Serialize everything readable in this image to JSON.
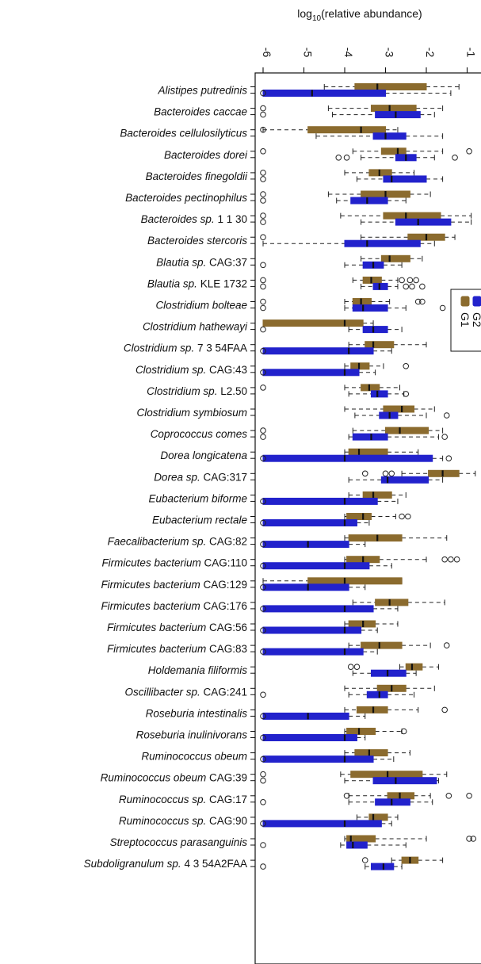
{
  "chart_data": {
    "type": "box",
    "orientation": "horizontal",
    "xlabel_prefix": "log",
    "xlabel_sub": "10",
    "xlabel_suffix": "(relative abundance)",
    "x_axis_position": "top",
    "x_ticks": [
      -6,
      -5,
      -4,
      -3,
      -2,
      -1
    ],
    "x_tick_labels": [
      "-6",
      "-5",
      "-4",
      "-3",
      "-2",
      "-1"
    ],
    "xlim": [
      -6.2,
      -0.8
    ],
    "legend": {
      "placement": "right",
      "entries": [
        {
          "name": "G1",
          "color": "#8B6B2E"
        },
        {
          "name": "G2",
          "color": "#2222CC"
        }
      ]
    },
    "series": [
      {
        "name": "G1",
        "color": "#8B6B2E"
      },
      {
        "name": "G2",
        "color": "#2222CC"
      }
    ],
    "categories": [
      {
        "label": "Alistipes putredinis",
        "genus": "Alistipes putredinis",
        "rest": "",
        "G1": {
          "lw": -4.5,
          "q1": -3.75,
          "med": -3.2,
          "q3": -2.0,
          "uw": -1.2,
          "out": []
        },
        "G2": {
          "lw": -6.0,
          "q1": -6.0,
          "med": -4.8,
          "q3": -3.0,
          "uw": -1.4,
          "out": [
            -6.0
          ]
        }
      },
      {
        "label": "Bacteroides caccae",
        "genus": "Bacteroides caccae",
        "rest": "",
        "G1": {
          "lw": -4.4,
          "q1": -3.35,
          "med": -2.9,
          "q3": -2.25,
          "uw": -1.6,
          "out": [
            -6.0
          ]
        },
        "G2": {
          "lw": -4.3,
          "q1": -3.25,
          "med": -2.75,
          "q3": -2.15,
          "uw": -1.8,
          "out": [
            -6.0
          ]
        }
      },
      {
        "label": "Bacteroides cellulosilyticus",
        "genus": "Bacteroides cellulosilyticus",
        "rest": "",
        "G1": {
          "lw": -6.0,
          "q1": -4.9,
          "med": -3.6,
          "q3": -3.0,
          "uw": -2.7,
          "out": [
            -6.0
          ]
        },
        "G2": {
          "lw": -4.7,
          "q1": -3.3,
          "med": -3.0,
          "q3": -2.5,
          "uw": -1.6,
          "out": []
        }
      },
      {
        "label": "Bacteroides dorei",
        "genus": "Bacteroides dorei",
        "rest": "",
        "G1": {
          "lw": -3.8,
          "q1": -3.1,
          "med": -2.7,
          "q3": -2.5,
          "uw": -1.6,
          "out": [
            -6.0,
            -0.95
          ]
        },
        "G2": {
          "lw": -3.6,
          "q1": -2.75,
          "med": -2.5,
          "q3": -2.25,
          "uw": -1.8,
          "out": [
            -4.15,
            -3.95,
            -1.3
          ]
        }
      },
      {
        "label": "Bacteroides finegoldii",
        "genus": "Bacteroides finegoldii",
        "rest": "",
        "G1": {
          "lw": -4.0,
          "q1": -3.4,
          "med": -3.15,
          "q3": -2.85,
          "uw": -2.3,
          "out": [
            -6.0
          ]
        },
        "G2": {
          "lw": -3.7,
          "q1": -3.05,
          "med": -2.85,
          "q3": -2.0,
          "uw": -1.6,
          "out": [
            -6.0
          ]
        }
      },
      {
        "label": "Bacteroides pectinophilus",
        "genus": "Bacteroides pectinophilus",
        "rest": "",
        "G1": {
          "lw": -4.4,
          "q1": -3.6,
          "med": -3.0,
          "q3": -2.4,
          "uw": -1.9,
          "out": [
            -6.0
          ]
        },
        "G2": {
          "lw": -4.2,
          "q1": -3.85,
          "med": -3.45,
          "q3": -2.95,
          "uw": -2.5,
          "out": [
            -6.0
          ]
        }
      },
      {
        "label": "Bacteroides sp. 1 1 30",
        "genus": "Bacteroides sp.",
        "rest": " 1 1 30",
        "G1": {
          "lw": -4.1,
          "q1": -3.05,
          "med": -2.5,
          "q3": -1.65,
          "uw": -0.9,
          "out": [
            -6.0
          ]
        },
        "G2": {
          "lw": -3.6,
          "q1": -2.75,
          "med": -2.2,
          "q3": -1.4,
          "uw": -0.9,
          "out": [
            -6.0
          ]
        }
      },
      {
        "label": "Bacteroides stercoris",
        "genus": "Bacteroides stercoris",
        "rest": "",
        "G1": {
          "lw": -3.6,
          "q1": -2.45,
          "med": -2.0,
          "q3": -1.55,
          "uw": -1.3,
          "out": [
            -6.0
          ]
        },
        "G2": {
          "lw": -6.0,
          "q1": -4.0,
          "med": -3.45,
          "q3": -2.15,
          "uw": -1.8,
          "out": []
        }
      },
      {
        "label": "Blautia sp. CAG:37",
        "genus": "Blautia sp.",
        "rest": " CAG:37",
        "G1": {
          "lw": -3.6,
          "q1": -3.1,
          "med": -2.9,
          "q3": -2.4,
          "uw": -2.1,
          "out": []
        },
        "G2": {
          "lw": -4.0,
          "q1": -3.55,
          "med": -3.3,
          "q3": -3.05,
          "uw": -2.6,
          "out": [
            -6.0
          ]
        }
      },
      {
        "label": "Blautia sp. KLE 1732",
        "genus": "Blautia sp.",
        "rest": " KLE 1732",
        "G1": {
          "lw": -3.8,
          "q1": -3.55,
          "med": -3.35,
          "q3": -3.1,
          "uw": -2.7,
          "out": [
            -6.0,
            -2.6,
            -2.4,
            -2.25
          ]
        },
        "G2": {
          "lw": -3.6,
          "q1": -3.3,
          "med": -3.15,
          "q3": -2.95,
          "uw": -2.7,
          "out": [
            -6.0,
            -2.5,
            -2.35,
            -2.1
          ]
        }
      },
      {
        "label": "Clostridium bolteae",
        "genus": "Clostridium bolteae",
        "rest": "",
        "G1": {
          "lw": -4.0,
          "q1": -3.8,
          "med": -3.6,
          "q3": -3.35,
          "uw": -2.9,
          "out": [
            -6.0,
            -2.2,
            -2.1
          ]
        },
        "G2": {
          "lw": -4.0,
          "q1": -3.8,
          "med": -3.55,
          "q3": -2.95,
          "uw": -2.5,
          "out": [
            -6.0,
            -1.6
          ]
        }
      },
      {
        "label": "Clostridium hathewayi",
        "genus": "Clostridium hathewayi",
        "rest": "",
        "G1": {
          "lw": -6.0,
          "q1": -6.0,
          "med": -4.0,
          "q3": -3.55,
          "uw": -3.3,
          "out": []
        },
        "G2": {
          "lw": -3.9,
          "q1": -3.55,
          "med": -3.3,
          "q3": -2.95,
          "uw": -2.6,
          "out": [
            -6.0
          ]
        }
      },
      {
        "label": "Clostridium sp. 7 3 54FAA",
        "genus": "Clostridium sp.",
        "rest": " 7 3 54FAA",
        "G1": {
          "lw": -3.9,
          "q1": -3.5,
          "med": -3.3,
          "q3": -2.8,
          "uw": -2.0,
          "out": []
        },
        "G2": {
          "lw": -6.0,
          "q1": -6.0,
          "med": -3.9,
          "q3": -3.3,
          "uw": -2.85,
          "out": [
            -6.0
          ]
        }
      },
      {
        "label": "Clostridium sp. CAG:43",
        "genus": "Clostridium sp.",
        "rest": " CAG:43",
        "G1": {
          "lw": -4.0,
          "q1": -3.85,
          "med": -3.65,
          "q3": -3.4,
          "uw": -3.05,
          "out": [
            -2.5
          ]
        },
        "G2": {
          "lw": -6.0,
          "q1": -6.0,
          "med": -4.0,
          "q3": -3.65,
          "uw": -3.25,
          "out": [
            -6.0
          ]
        }
      },
      {
        "label": "Clostridium sp. L2.50",
        "genus": "Clostridium sp.",
        "rest": " L2.50",
        "G1": {
          "lw": -4.0,
          "q1": -3.6,
          "med": -3.4,
          "q3": -3.15,
          "uw": -2.65,
          "out": [
            -6.0
          ]
        },
        "G2": {
          "lw": -3.9,
          "q1": -3.35,
          "med": -3.2,
          "q3": -2.95,
          "uw": -2.55,
          "out": [
            -2.5
          ]
        }
      },
      {
        "label": "Clostridium symbiosum",
        "genus": "Clostridium symbiosum",
        "rest": "",
        "G1": {
          "lw": -4.0,
          "q1": -3.05,
          "med": -2.6,
          "q3": -2.3,
          "uw": -1.8,
          "out": []
        },
        "G2": {
          "lw": -3.75,
          "q1": -3.15,
          "med": -2.9,
          "q3": -2.7,
          "uw": -2.0,
          "out": [
            -1.5
          ]
        }
      },
      {
        "label": "Coprococcus comes",
        "genus": "Coprococcus comes",
        "rest": "",
        "G1": {
          "lw": -3.8,
          "q1": -3.0,
          "med": -2.65,
          "q3": -1.95,
          "uw": -1.6,
          "out": [
            -6.0
          ]
        },
        "G2": {
          "lw": -3.9,
          "q1": -3.8,
          "med": -3.35,
          "q3": -2.95,
          "uw": -1.7,
          "out": [
            -6.0,
            -1.55
          ]
        }
      },
      {
        "label": "Dorea longicatena",
        "genus": "Dorea longicatena",
        "rest": "",
        "G1": {
          "lw": -4.0,
          "q1": -3.9,
          "med": -3.65,
          "q3": -2.95,
          "uw": -2.2,
          "out": []
        },
        "G2": {
          "lw": -6.0,
          "q1": -6.0,
          "med": -4.0,
          "q3": -1.85,
          "uw": -1.6,
          "out": [
            -6.0,
            -1.45
          ]
        }
      },
      {
        "label": "Dorea sp. CAG:317",
        "genus": "Dorea sp.",
        "rest": " CAG:317",
        "G1": {
          "lw": -2.6,
          "q1": -1.95,
          "med": -1.6,
          "q3": -1.2,
          "uw": -0.8,
          "out": [
            -3.5,
            -3.0,
            -2.85
          ]
        },
        "G2": {
          "lw": -3.9,
          "q1": -3.1,
          "med": -2.95,
          "q3": -1.95,
          "uw": -1.6,
          "out": []
        }
      },
      {
        "label": "Eubacterium biforme",
        "genus": "Eubacterium biforme",
        "rest": "",
        "G1": {
          "lw": -3.9,
          "q1": -3.55,
          "med": -3.3,
          "q3": -2.85,
          "uw": -2.5,
          "out": []
        },
        "G2": {
          "lw": -6.0,
          "q1": -6.0,
          "med": -4.0,
          "q3": -3.2,
          "uw": -2.7,
          "out": [
            -6.0
          ]
        }
      },
      {
        "label": "Eubacterium rectale",
        "genus": "Eubacterium rectale",
        "rest": "",
        "G1": {
          "lw": -4.0,
          "q1": -3.95,
          "med": -3.55,
          "q3": -3.35,
          "uw": -2.75,
          "out": [
            -2.6,
            -2.45
          ]
        },
        "G2": {
          "lw": -6.0,
          "q1": -6.0,
          "med": -4.0,
          "q3": -3.7,
          "uw": -3.4,
          "out": [
            -6.0
          ]
        }
      },
      {
        "label": "Faecalibacterium sp. CAG:82",
        "genus": "Faecalibacterium sp.",
        "rest": " CAG:82",
        "G1": {
          "lw": -4.0,
          "q1": -3.9,
          "med": -3.2,
          "q3": -2.6,
          "uw": -1.5,
          "out": []
        },
        "G2": {
          "lw": -6.0,
          "q1": -6.0,
          "med": -4.9,
          "q3": -3.9,
          "uw": -3.5,
          "out": [
            -6.0
          ]
        }
      },
      {
        "label": "Firmicutes bacterium CAG:110",
        "genus": "Firmicutes bacterium",
        "rest": " CAG:110",
        "G1": {
          "lw": -4.0,
          "q1": -3.95,
          "med": -3.55,
          "q3": -3.15,
          "uw": -2.0,
          "out": [
            -1.55,
            -1.4,
            -1.25
          ]
        },
        "G2": {
          "lw": -6.0,
          "q1": -6.0,
          "med": -4.0,
          "q3": -3.4,
          "uw": -2.85,
          "out": [
            -6.0
          ]
        }
      },
      {
        "label": "Firmicutes bacterium CAG:129",
        "genus": "Firmicutes bacterium",
        "rest": " CAG:129",
        "G1": {
          "lw": -6.0,
          "q1": -4.9,
          "med": -4.0,
          "q3": -2.6,
          "uw": -2.6,
          "out": []
        },
        "G2": {
          "lw": -6.0,
          "q1": -6.0,
          "med": -4.9,
          "q3": -3.9,
          "uw": -3.5,
          "out": [
            -6.0
          ]
        }
      },
      {
        "label": "Firmicutes bacterium CAG:176",
        "genus": "Firmicutes bacterium",
        "rest": " CAG:176",
        "G1": {
          "lw": -3.8,
          "q1": -3.25,
          "med": -2.9,
          "q3": -2.45,
          "uw": -1.55,
          "out": []
        },
        "G2": {
          "lw": -6.0,
          "q1": -6.0,
          "med": -4.0,
          "q3": -3.3,
          "uw": -2.7,
          "out": [
            -6.0
          ]
        }
      },
      {
        "label": "Firmicutes bacterium CAG:56",
        "genus": "Firmicutes bacterium",
        "rest": " CAG:56",
        "G1": {
          "lw": -4.0,
          "q1": -3.9,
          "med": -3.55,
          "q3": -3.25,
          "uw": -2.7,
          "out": []
        },
        "G2": {
          "lw": -6.0,
          "q1": -6.0,
          "med": -4.0,
          "q3": -3.6,
          "uw": -3.2,
          "out": [
            -6.0
          ]
        }
      },
      {
        "label": "Firmicutes bacterium CAG:83",
        "genus": "Firmicutes bacterium",
        "rest": " CAG:83",
        "G1": {
          "lw": -3.9,
          "q1": -3.6,
          "med": -3.15,
          "q3": -2.6,
          "uw": -1.9,
          "out": [
            -1.5
          ]
        },
        "G2": {
          "lw": -6.0,
          "q1": -6.0,
          "med": -4.0,
          "q3": -3.55,
          "uw": -3.2,
          "out": [
            -6.0
          ]
        }
      },
      {
        "label": "Holdemania filiformis",
        "genus": "Holdemania filiformis",
        "rest": "",
        "G1": {
          "lw": -2.65,
          "q1": -2.5,
          "med": -2.35,
          "q3": -2.1,
          "uw": -1.7,
          "out": [
            -3.85,
            -3.7
          ]
        },
        "G2": {
          "lw": -3.8,
          "q1": -3.35,
          "med": -2.95,
          "q3": -2.5,
          "uw": -2.25,
          "out": []
        }
      },
      {
        "label": "Oscillibacter sp. CAG:241",
        "genus": "Oscillibacter sp.",
        "rest": " CAG:241",
        "G1": {
          "lw": -4.0,
          "q1": -3.2,
          "med": -2.85,
          "q3": -2.5,
          "uw": -1.8,
          "out": []
        },
        "G2": {
          "lw": -3.9,
          "q1": -3.45,
          "med": -3.15,
          "q3": -2.95,
          "uw": -2.3,
          "out": [
            -6.0
          ]
        }
      },
      {
        "label": "Roseburia intestinalis",
        "genus": "Roseburia intestinalis",
        "rest": "",
        "G1": {
          "lw": -4.0,
          "q1": -3.7,
          "med": -3.3,
          "q3": -2.95,
          "uw": -2.2,
          "out": [
            -1.55
          ]
        },
        "G2": {
          "lw": -6.0,
          "q1": -6.0,
          "med": -4.9,
          "q3": -3.9,
          "uw": -3.5,
          "out": [
            -6.0
          ]
        }
      },
      {
        "label": "Roseburia inulinivorans",
        "genus": "Roseburia inulinivorans",
        "rest": "",
        "G1": {
          "lw": -4.0,
          "q1": -3.95,
          "med": -3.65,
          "q3": -3.25,
          "uw": -2.6,
          "out": [
            -2.55
          ]
        },
        "G2": {
          "lw": -6.0,
          "q1": -6.0,
          "med": -4.0,
          "q3": -3.7,
          "uw": -3.5,
          "out": [
            -6.0
          ]
        }
      },
      {
        "label": "Ruminococcus obeum",
        "genus": "Ruminococcus obeum",
        "rest": "",
        "G1": {
          "lw": -4.0,
          "q1": -3.75,
          "med": -3.4,
          "q3": -2.95,
          "uw": -2.4,
          "out": []
        },
        "G2": {
          "lw": -6.0,
          "q1": -6.0,
          "med": -4.0,
          "q3": -3.3,
          "uw": -2.8,
          "out": [
            -6.0
          ]
        }
      },
      {
        "label": "Ruminococcus obeum CAG:39",
        "genus": "Ruminococcus obeum",
        "rest": " CAG:39",
        "G1": {
          "lw": -4.1,
          "q1": -3.85,
          "med": -2.95,
          "q3": -2.1,
          "uw": -1.5,
          "out": [
            -6.0
          ]
        },
        "G2": {
          "lw": -4.0,
          "q1": -3.3,
          "med": -2.75,
          "q3": -1.75,
          "uw": -1.7,
          "out": [
            -6.0
          ]
        }
      },
      {
        "label": "Ruminococcus sp. CAG:17",
        "genus": "Ruminococcus sp.",
        "rest": " CAG:17",
        "G1": {
          "lw": -3.9,
          "q1": -2.95,
          "med": -2.65,
          "q3": -2.3,
          "uw": -1.9,
          "out": [
            -3.95,
            -1.45,
            -0.95
          ]
        },
        "G2": {
          "lw": -3.9,
          "q1": -3.25,
          "med": -2.85,
          "q3": -2.4,
          "uw": -1.85,
          "out": [
            -6.0
          ]
        }
      },
      {
        "label": "Ruminococcus sp. CAG:90",
        "genus": "Ruminococcus sp.",
        "rest": " CAG:90",
        "G1": {
          "lw": -3.7,
          "q1": -3.4,
          "med": -3.3,
          "q3": -2.95,
          "uw": -2.7,
          "out": []
        },
        "G2": {
          "lw": -6.0,
          "q1": -6.0,
          "med": -4.0,
          "q3": -3.1,
          "uw": -2.85,
          "out": [
            -6.0
          ]
        }
      },
      {
        "label": "Streptococcus parasanguinis",
        "genus": "Streptococcus parasanguinis",
        "rest": "",
        "G1": {
          "lw": -4.0,
          "q1": -3.95,
          "med": -3.85,
          "q3": -3.25,
          "uw": -2.0,
          "out": [
            -0.95,
            -0.85
          ]
        },
        "G2": {
          "lw": -4.1,
          "q1": -3.95,
          "med": -3.8,
          "q3": -3.45,
          "uw": -2.5,
          "out": [
            -6.0
          ]
        }
      },
      {
        "label": "Subdoligranulum sp. 4 3 54A2FAA",
        "genus": "Subdoligranulum sp.",
        "rest": " 4 3 54A2FAA",
        "G1": {
          "lw": -2.85,
          "q1": -2.6,
          "med": -2.4,
          "q3": -2.2,
          "uw": -1.6,
          "out": [
            -3.5
          ]
        },
        "G2": {
          "lw": -3.5,
          "q1": -3.35,
          "med": -3.05,
          "q3": -2.8,
          "uw": -2.6,
          "out": [
            -6.0
          ]
        }
      }
    ]
  }
}
